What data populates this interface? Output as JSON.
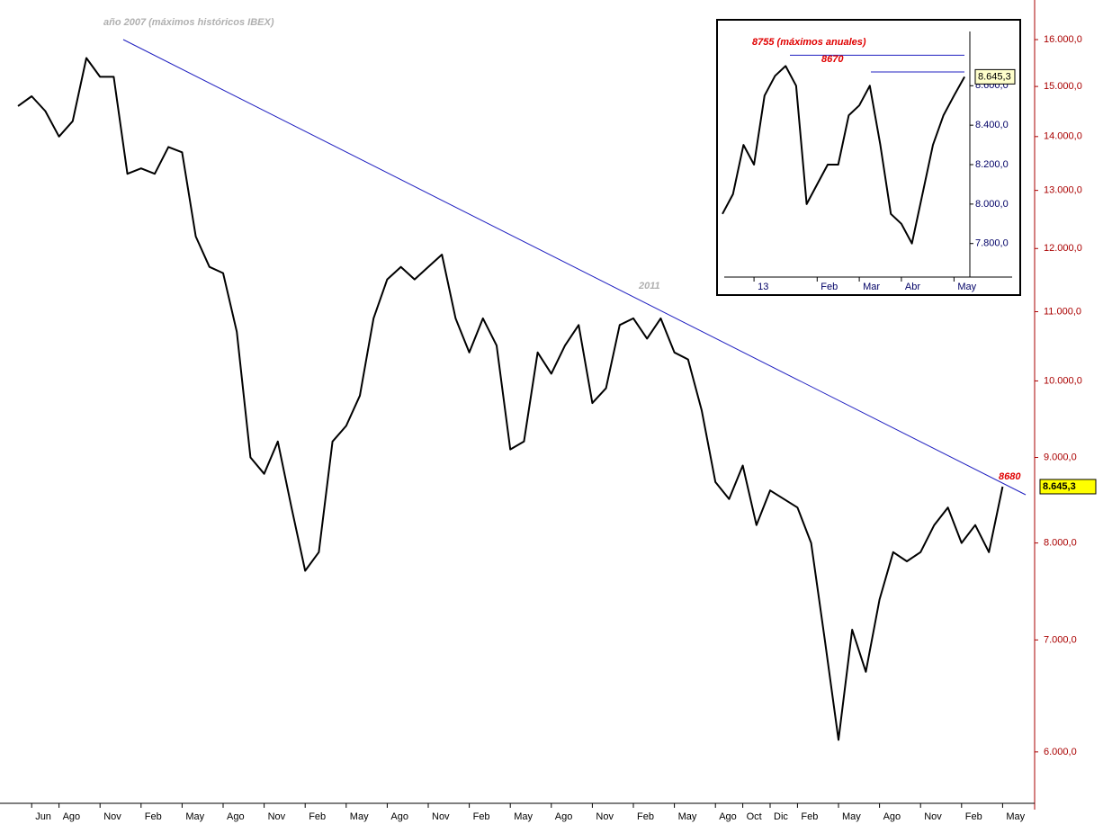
{
  "chart_data": [
    {
      "type": "line",
      "title": "año 2007 (máximos históricos IBEX)",
      "log_scale": true,
      "grid": false,
      "color": "#000000",
      "annotations": [
        "2011",
        "8680"
      ],
      "last_value": {
        "value": 8645.3,
        "label": "8.645,3"
      },
      "categories": [
        null,
        "Jun",
        null,
        "Ago",
        null,
        null,
        "Nov",
        null,
        null,
        "Feb",
        null,
        null,
        "May",
        null,
        null,
        "Ago",
        null,
        null,
        "Nov",
        null,
        null,
        "Feb",
        null,
        null,
        "May",
        null,
        null,
        "Ago",
        null,
        null,
        "Nov",
        null,
        null,
        "Feb",
        null,
        null,
        "May",
        null,
        null,
        "Ago",
        null,
        null,
        "Nov",
        null,
        null,
        "Feb",
        null,
        null,
        "May",
        null,
        null,
        "Ago",
        null,
        "Oct",
        null,
        "Dic",
        null,
        "Feb",
        null,
        null,
        "May",
        null,
        null,
        "Ago",
        null,
        null,
        "Nov",
        null,
        null,
        "Feb",
        null,
        null,
        "May"
      ],
      "values": [
        14600,
        14800,
        14500,
        14000,
        14300,
        15600,
        15200,
        15200,
        13300,
        13400,
        13300,
        13800,
        13700,
        12200,
        11700,
        11600,
        10700,
        9000,
        8800,
        9200,
        8400,
        7700,
        7900,
        9200,
        9400,
        9800,
        10900,
        11500,
        11700,
        11500,
        11700,
        11900,
        10900,
        10400,
        10900,
        10500,
        9100,
        9200,
        10400,
        10100,
        10500,
        10800,
        9700,
        9900,
        10800,
        10900,
        10600,
        10900,
        10400,
        10300,
        9600,
        8700,
        8500,
        8900,
        8200,
        8600,
        8500,
        8400,
        8000,
        7000,
        6100,
        7100,
        6700,
        7400,
        7900,
        7800,
        7900,
        8200,
        8400,
        8000,
        8200,
        7900,
        8645
      ],
      "ylim": [
        5590,
        16730
      ],
      "yticks": [
        {
          "value": 6000,
          "label": "6.000,0"
        },
        {
          "value": 7000,
          "label": "7.000,0"
        },
        {
          "value": 8000,
          "label": "8.000,0"
        },
        {
          "value": 9000,
          "label": "9.000,0"
        },
        {
          "value": 10000,
          "label": "10.000,0"
        },
        {
          "value": 11000,
          "label": "11.000,0"
        },
        {
          "value": 12000,
          "label": "12.000,0"
        },
        {
          "value": 13000,
          "label": "13.000,0"
        },
        {
          "value": 14000,
          "label": "14.000,0"
        },
        {
          "value": 15000,
          "label": "15.000,0"
        },
        {
          "value": 16000,
          "label": "16.000,0"
        }
      ]
    },
    {
      "type": "line",
      "log_scale": false,
      "grid": false,
      "color": "#000000",
      "reference_lines": [
        {
          "value": 8755,
          "label": "8755 (máximos anuales)"
        },
        {
          "value": 8670,
          "label": "8670"
        }
      ],
      "last_value": {
        "value": 8645.3,
        "label": "8.645,3"
      },
      "categories": [
        null,
        null,
        null,
        "13",
        null,
        null,
        null,
        null,
        null,
        "Feb",
        null,
        null,
        null,
        "Mar",
        null,
        null,
        null,
        "Abr",
        null,
        null,
        null,
        null,
        "May",
        null
      ],
      "values": [
        7950,
        8050,
        8300,
        8200,
        8550,
        8650,
        8700,
        8600,
        8000,
        8100,
        8200,
        8200,
        8450,
        8500,
        8600,
        8300,
        7950,
        7900,
        7800,
        8050,
        8300,
        8450,
        8550,
        8645
      ],
      "ylim": [
        7630,
        8875
      ],
      "yticks": [
        {
          "value": 7800,
          "label": "7.800,0"
        },
        {
          "value": 8000,
          "label": "8.000,0"
        },
        {
          "value": 8200,
          "label": "8.200,0"
        },
        {
          "value": 8400,
          "label": "8.400,0"
        },
        {
          "value": 8600,
          "label": "8.600,0"
        }
      ]
    }
  ]
}
